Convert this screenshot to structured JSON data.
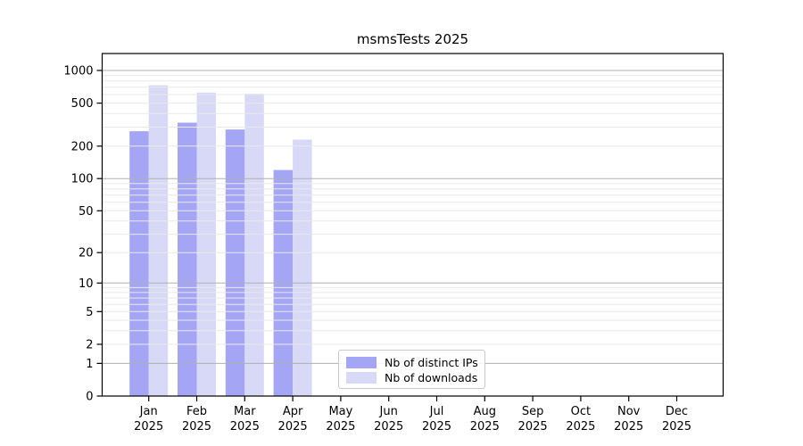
{
  "chart_data": {
    "type": "bar",
    "title": "msmsTests 2025",
    "y_scale": "log1p",
    "ylim": [
      0,
      1450
    ],
    "yticks": [
      0,
      1,
      2,
      5,
      10,
      20,
      50,
      100,
      200,
      500,
      1000
    ],
    "grid": true,
    "categories": [
      "Jan",
      "Feb",
      "Mar",
      "Apr",
      "May",
      "Jun",
      "Jul",
      "Aug",
      "Sep",
      "Oct",
      "Nov",
      "Dec"
    ],
    "year_label": "2025",
    "series": [
      {
        "name": "Nb of distinct IPs",
        "color": "#a5a5f5",
        "values": [
          275,
          330,
          285,
          120,
          0,
          0,
          0,
          0,
          0,
          0,
          0,
          0
        ]
      },
      {
        "name": "Nb of downloads",
        "color": "#d8d8f7",
        "values": [
          730,
          625,
          610,
          230,
          0,
          0,
          0,
          0,
          0,
          0,
          0,
          0
        ]
      }
    ],
    "legend_position": "bottom-center-inside",
    "colors": {
      "background": "#ffffff",
      "axis": "#000000",
      "tick_label": "#000000",
      "grid_major": "#b0b0b0",
      "grid_minor": "#e9e9e9"
    }
  }
}
